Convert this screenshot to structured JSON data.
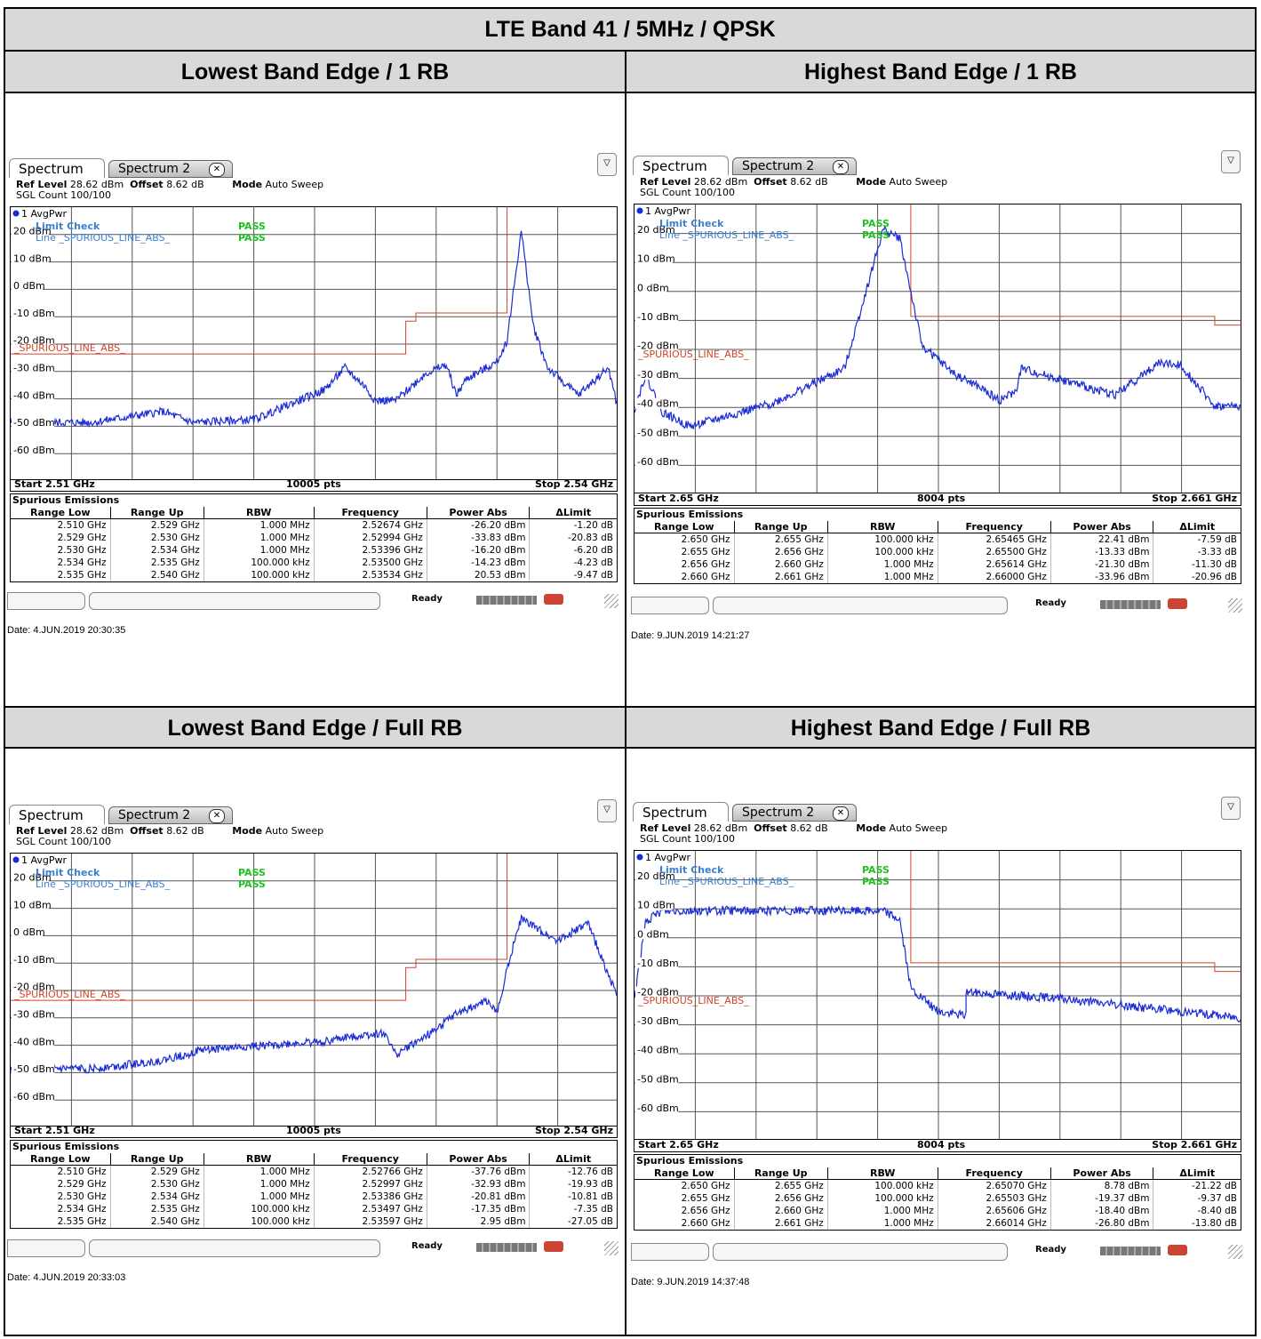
{
  "title": "LTE Band 41 / 5MHz / QPSK",
  "panels": [
    {
      "heading": "Lowest Band Edge / 1 RB",
      "tab1": "Spectrum",
      "tab2": "Spectrum 2",
      "ref_level": "28.62 dBm",
      "offset": "8.62 dB",
      "mode": "Auto Sweep",
      "sgl_count": "SGL Count 100/100",
      "trace_label": "1 AvgPwr",
      "limit_check": "Limit Check",
      "limit_check_result": "PASS",
      "line_label": "Line _SPURIOUS_LINE_ABS_",
      "line_result": "PASS",
      "limit_line_name": "_SPURIOUS_LINE_ABS_",
      "start": "Start 2.51 GHz",
      "pts": "10005 pts",
      "stop": "Stop 2.54 GHz",
      "spur_title": "Spurious Emissions",
      "headers": [
        "Range Low",
        "Range Up",
        "RBW",
        "Frequency",
        "Power Abs",
        "ΔLimit"
      ],
      "rows": [
        [
          "2.510 GHz",
          "2.529 GHz",
          "1.000 MHz",
          "2.52674 GHz",
          "-26.20 dBm",
          "-1.20 dB"
        ],
        [
          "2.529 GHz",
          "2.530 GHz",
          "1.000 MHz",
          "2.52994 GHz",
          "-33.83 dBm",
          "-20.83 dB"
        ],
        [
          "2.530 GHz",
          "2.534 GHz",
          "1.000 MHz",
          "2.53396 GHz",
          "-16.20 dBm",
          "-6.20 dB"
        ],
        [
          "2.534 GHz",
          "2.535 GHz",
          "100.000 kHz",
          "2.53500 GHz",
          "-14.23 dBm",
          "-4.23 dB"
        ],
        [
          "2.535 GHz",
          "2.540 GHz",
          "100.000 kHz",
          "2.53534 GHz",
          "20.53 dBm",
          "-9.47 dB"
        ]
      ],
      "ready": "Ready",
      "date": "Date: 4.JUN.2019  20:30:35"
    },
    {
      "heading": "Highest Band Edge / 1 RB",
      "tab1": "Spectrum",
      "tab2": "Spectrum 2",
      "ref_level": "28.62 dBm",
      "offset": "8.62 dB",
      "mode": "Auto Sweep",
      "sgl_count": "SGL Count 100/100",
      "trace_label": "1 AvgPwr",
      "limit_check": "Limit Check",
      "limit_check_result": "PASS",
      "line_label": "Line _SPURIOUS_LINE_ABS_",
      "line_result": "PASS",
      "limit_line_name": "_SPURIOUS_LINE_ABS_",
      "start": "Start 2.65 GHz",
      "pts": "8004 pts",
      "stop": "Stop 2.661 GHz",
      "spur_title": "Spurious Emissions",
      "headers": [
        "Range Low",
        "Range Up",
        "RBW",
        "Frequency",
        "Power Abs",
        "ΔLimit"
      ],
      "rows": [
        [
          "2.650 GHz",
          "2.655 GHz",
          "100.000 kHz",
          "2.65465 GHz",
          "22.41 dBm",
          "-7.59 dB"
        ],
        [
          "2.655 GHz",
          "2.656 GHz",
          "100.000 kHz",
          "2.65500 GHz",
          "-13.33 dBm",
          "-3.33 dB"
        ],
        [
          "2.656 GHz",
          "2.660 GHz",
          "1.000 MHz",
          "2.65614 GHz",
          "-21.30 dBm",
          "-11.30 dB"
        ],
        [
          "2.660 GHz",
          "2.661 GHz",
          "1.000 MHz",
          "2.66000 GHz",
          "-33.96 dBm",
          "-20.96 dB"
        ]
      ],
      "ready": "Ready",
      "date": "Date: 9.JUN.2019  14:21:27"
    },
    {
      "heading": "Lowest Band Edge / Full RB",
      "tab1": "Spectrum",
      "tab2": "Spectrum 2",
      "ref_level": "28.62 dBm",
      "offset": "8.62 dB",
      "mode": "Auto Sweep",
      "sgl_count": "SGL Count 100/100",
      "trace_label": "1 AvgPwr",
      "limit_check": "Limit Check",
      "limit_check_result": "PASS",
      "line_label": "Line _SPURIOUS_LINE_ABS_",
      "line_result": "PASS",
      "limit_line_name": "_SPURIOUS_LINE_ABS_",
      "start": "Start 2.51 GHz",
      "pts": "10005 pts",
      "stop": "Stop 2.54 GHz",
      "spur_title": "Spurious Emissions",
      "headers": [
        "Range Low",
        "Range Up",
        "RBW",
        "Frequency",
        "Power Abs",
        "ΔLimit"
      ],
      "rows": [
        [
          "2.510 GHz",
          "2.529 GHz",
          "1.000 MHz",
          "2.52766 GHz",
          "-37.76 dBm",
          "-12.76 dB"
        ],
        [
          "2.529 GHz",
          "2.530 GHz",
          "1.000 MHz",
          "2.52997 GHz",
          "-32.93 dBm",
          "-19.93 dB"
        ],
        [
          "2.530 GHz",
          "2.534 GHz",
          "1.000 MHz",
          "2.53386 GHz",
          "-20.81 dBm",
          "-10.81 dB"
        ],
        [
          "2.534 GHz",
          "2.535 GHz",
          "100.000 kHz",
          "2.53497 GHz",
          "-17.35 dBm",
          "-7.35 dB"
        ],
        [
          "2.535 GHz",
          "2.540 GHz",
          "100.000 kHz",
          "2.53597 GHz",
          "2.95 dBm",
          "-27.05 dB"
        ]
      ],
      "ready": "Ready",
      "date": "Date: 4.JUN.2019  20:33:03"
    },
    {
      "heading": "Highest Band Edge / Full RB",
      "tab1": "Spectrum",
      "tab2": "Spectrum 2",
      "ref_level": "28.62 dBm",
      "offset": "8.62 dB",
      "mode": "Auto Sweep",
      "sgl_count": "SGL Count 100/100",
      "trace_label": "1 AvgPwr",
      "limit_check": "Limit Check",
      "limit_check_result": "PASS",
      "line_label": "Line _SPURIOUS_LINE_ABS_",
      "line_result": "PASS",
      "limit_line_name": "_SPURIOUS_LINE_ABS_",
      "start": "Start 2.65 GHz",
      "pts": "8004 pts",
      "stop": "Stop 2.661 GHz",
      "spur_title": "Spurious Emissions",
      "headers": [
        "Range Low",
        "Range Up",
        "RBW",
        "Frequency",
        "Power Abs",
        "ΔLimit"
      ],
      "rows": [
        [
          "2.650 GHz",
          "2.655 GHz",
          "100.000 kHz",
          "2.65070 GHz",
          "8.78 dBm",
          "-21.22 dB"
        ],
        [
          "2.655 GHz",
          "2.656 GHz",
          "100.000 kHz",
          "2.65503 GHz",
          "-19.37 dBm",
          "-9.37 dB"
        ],
        [
          "2.656 GHz",
          "2.660 GHz",
          "1.000 MHz",
          "2.65606 GHz",
          "-18.40 dBm",
          "-8.40 dB"
        ],
        [
          "2.660 GHz",
          "2.661 GHz",
          "1.000 MHz",
          "2.66014 GHz",
          "-26.80 dBm",
          "-13.80 dB"
        ]
      ],
      "ready": "Ready",
      "date": "Date: 9.JUN.2019  14:37:48"
    }
  ],
  "chart_data": [
    {
      "type": "line",
      "title": "Lowest Band Edge / 1 RB",
      "x_range_ghz": [
        2.51,
        2.54
      ],
      "y_ticks": [
        "20 dBm",
        "10 dBm",
        "0 dBm",
        "-10 dBm",
        "-20 dBm",
        "-30 dBm",
        "-40 dBm",
        "-50 dBm",
        "-60 dBm"
      ],
      "y_range_dbm": [
        -71.38,
        28.62
      ],
      "limit_line": {
        "x_ghz": [
          2.51,
          2.5295,
          2.5295,
          2.53,
          2.53,
          2.5345,
          2.5345,
          2.54
        ],
        "y_dbm": [
          -25,
          -25,
          -13,
          -13,
          -10,
          -10,
          30,
          30
        ]
      },
      "trace": {
        "x_ghz": [
          2.51,
          2.514,
          2.5175,
          2.519,
          2.522,
          2.5255,
          2.5265,
          2.5275,
          2.528,
          2.529,
          2.5305,
          2.5315,
          2.532,
          2.5325,
          2.5335,
          2.534,
          2.5345,
          2.5352,
          2.5358,
          2.5365,
          2.538,
          2.5395,
          2.54
        ],
        "y_dbm": [
          -50,
          -50,
          -46,
          -50,
          -49,
          -38,
          -30,
          -37,
          -42,
          -42,
          -32,
          -29,
          -40,
          -34,
          -30,
          -28,
          -20,
          20,
          -15,
          -30,
          -40,
          -30,
          -46
        ]
      },
      "grid": true
    },
    {
      "type": "line",
      "title": "Highest Band Edge / 1 RB",
      "x_range_ghz": [
        2.65,
        2.661
      ],
      "y_ticks": [
        "20 dBm",
        "10 dBm",
        "0 dBm",
        "-10 dBm",
        "-20 dBm",
        "-30 dBm",
        "-40 dBm",
        "-50 dBm",
        "-60 dBm"
      ],
      "y_range_dbm": [
        -71.38,
        28.62
      ],
      "limit_line": {
        "x_ghz": [
          2.65,
          2.655,
          2.655,
          2.6605,
          2.6605,
          2.661
        ],
        "y_dbm": [
          30,
          30,
          -10,
          -10,
          -13,
          -13
        ]
      },
      "trace": {
        "x_ghz": [
          2.65,
          2.6502,
          2.6505,
          2.651,
          2.6525,
          2.6538,
          2.6545,
          2.6548,
          2.6552,
          2.6558,
          2.6562,
          2.6566,
          2.6569,
          2.657,
          2.6583,
          2.6587,
          2.6595,
          2.6599,
          2.6605,
          2.661
        ],
        "y_dbm": [
          -42,
          -30,
          -43,
          -48,
          -40,
          -28,
          20,
          17,
          -20,
          -30,
          -34,
          -39,
          -36,
          -28,
          -35,
          -37,
          -26,
          -27,
          -41,
          -41
        ]
      },
      "grid": true
    },
    {
      "type": "line",
      "title": "Lowest Band Edge / Full RB",
      "x_range_ghz": [
        2.51,
        2.54
      ],
      "y_ticks": [
        "20 dBm",
        "10 dBm",
        "0 dBm",
        "-10 dBm",
        "-20 dBm",
        "-30 dBm",
        "-40 dBm",
        "-50 dBm",
        "-60 dBm"
      ],
      "y_range_dbm": [
        -71.38,
        28.62
      ],
      "limit_line": {
        "x_ghz": [
          2.51,
          2.5295,
          2.5295,
          2.53,
          2.53,
          2.5345,
          2.5345,
          2.54
        ],
        "y_dbm": [
          -25,
          -25,
          -13,
          -13,
          -10,
          -10,
          30,
          30
        ]
      },
      "trace": {
        "x_ghz": [
          2.51,
          2.514,
          2.5175,
          2.5195,
          2.5215,
          2.5235,
          2.5255,
          2.527,
          2.5285,
          2.529,
          2.5305,
          2.532,
          2.5335,
          2.534,
          2.5345,
          2.5352,
          2.536,
          2.537,
          2.5385,
          2.54
        ],
        "y_dbm": [
          -50,
          -50,
          -47,
          -43,
          -42,
          -41,
          -40,
          -38,
          -37,
          -45,
          -38,
          -30,
          -25,
          -30,
          -13,
          5,
          1,
          -3,
          3,
          -25
        ]
      },
      "grid": true
    },
    {
      "type": "line",
      "title": "Highest Band Edge / Full RB",
      "x_range_ghz": [
        2.65,
        2.661
      ],
      "y_ticks": [
        "20 dBm",
        "10 dBm",
        "0 dBm",
        "-10 dBm",
        "-20 dBm",
        "-30 dBm",
        "-40 dBm",
        "-50 dBm",
        "-60 dBm"
      ],
      "y_range_dbm": [
        -71.38,
        28.62
      ],
      "limit_line": {
        "x_ghz": [
          2.65,
          2.655,
          2.655,
          2.6605,
          2.6605,
          2.661
        ],
        "y_dbm": [
          30,
          30,
          -10,
          -10,
          -13,
          -13
        ]
      },
      "trace": {
        "x_ghz": [
          2.65,
          2.6502,
          2.6505,
          2.6545,
          2.6548,
          2.655,
          2.6555,
          2.656,
          2.656,
          2.6575,
          2.659,
          2.6605,
          2.661
        ],
        "y_dbm": [
          -22,
          4,
          8,
          8,
          5,
          -19,
          -27,
          -28,
          -20,
          -22,
          -25,
          -28,
          -29
        ]
      },
      "grid": true
    }
  ]
}
